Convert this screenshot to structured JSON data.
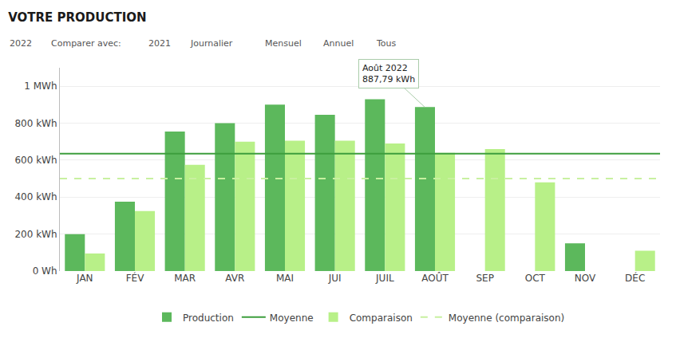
{
  "chart_data": {
    "type": "bar",
    "title": "VOTRE PRODUCTION",
    "categories": [
      "JAN",
      "FÉV",
      "MAR",
      "AVR",
      "MAI",
      "JUI",
      "JUIL",
      "AOÛT",
      "SEP",
      "OCT",
      "NOV",
      "DÉC"
    ],
    "series": [
      {
        "name": "Production",
        "color": "#5cb85c",
        "values": [
          200,
          375,
          755,
          800,
          900,
          845,
          930,
          887.79,
          0,
          0,
          150,
          0
        ]
      },
      {
        "name": "Comparaison",
        "color": "#b8f088",
        "values": [
          95,
          325,
          575,
          700,
          705,
          705,
          690,
          640,
          660,
          480,
          0,
          110
        ]
      }
    ],
    "reference_lines": [
      {
        "name": "Moyenne",
        "color": "#3d9e3d",
        "value": 635,
        "line_style": "solid"
      },
      {
        "name": "Moyenne (comparaison)",
        "color": "#c8f0a0",
        "value": 500,
        "line_style": "dashed"
      }
    ],
    "ylim": [
      0,
      1100
    ],
    "yticks": [
      {
        "value": 0,
        "label": "0 Wh"
      },
      {
        "value": 200,
        "label": "200 kWh"
      },
      {
        "value": 400,
        "label": "400 kWh"
      },
      {
        "value": 600,
        "label": "600 kWh"
      },
      {
        "value": 800,
        "label": "800 kWh"
      },
      {
        "value": 1000,
        "label": "1 MWh"
      }
    ],
    "grid": true,
    "legend": "bottom",
    "annotations": [
      {
        "text": "2022"
      },
      {
        "text": "Comparer avec:"
      },
      {
        "text": "2021"
      },
      {
        "text": "Journalier"
      },
      {
        "text": "Mensuel"
      },
      {
        "text": "Annuel"
      },
      {
        "text": "Tous"
      },
      {
        "text": "Août 2022\n887,79 kWh",
        "x": "AOÛT",
        "y": 887.79
      }
    ]
  }
}
